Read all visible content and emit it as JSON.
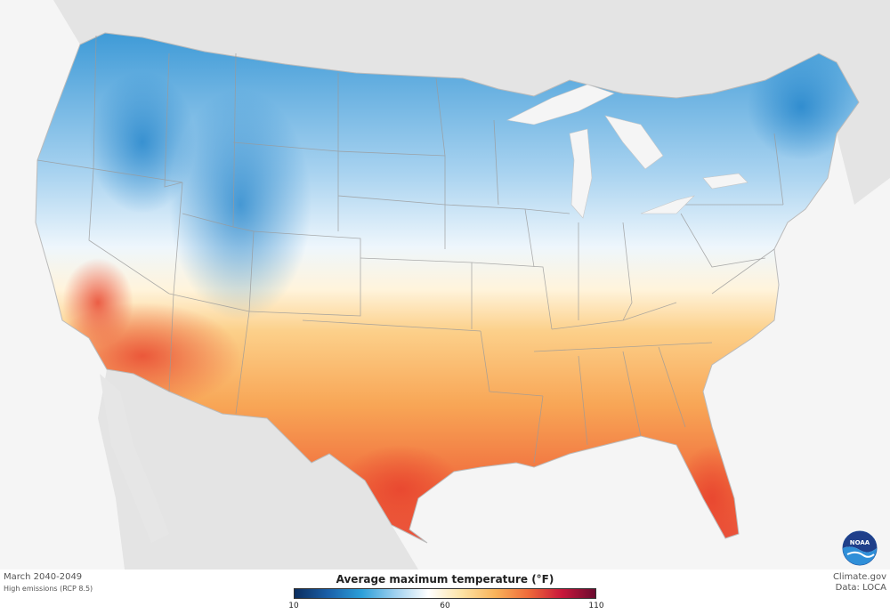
{
  "map": {
    "period": "March 2040-2049",
    "scenario": "High emissions (RCP 8.5)",
    "legend": {
      "title": "Average maximum temperature (°F)",
      "min_label": "10",
      "mid_label": "60",
      "max_label": "110",
      "min_value": 10,
      "mid_value": 60,
      "max_value": 110,
      "colors": [
        "#0b2d5e",
        "#1a5fa8",
        "#2c9fd9",
        "#9ed0ef",
        "#ffffff",
        "#fde3a6",
        "#f9b35a",
        "#ef6a3a",
        "#c8173b",
        "#6b0b2f"
      ]
    },
    "source": "Climate.gov",
    "credit": "Data: LOCA",
    "colors": {
      "cold": "#3a98d6",
      "cool": "#d2e8f6",
      "neutral": "#ffffff",
      "warm": "#fbbd66",
      "hot": "#ef5a3a",
      "land": "#e4e4e4",
      "water": "#f5f5f5"
    }
  }
}
